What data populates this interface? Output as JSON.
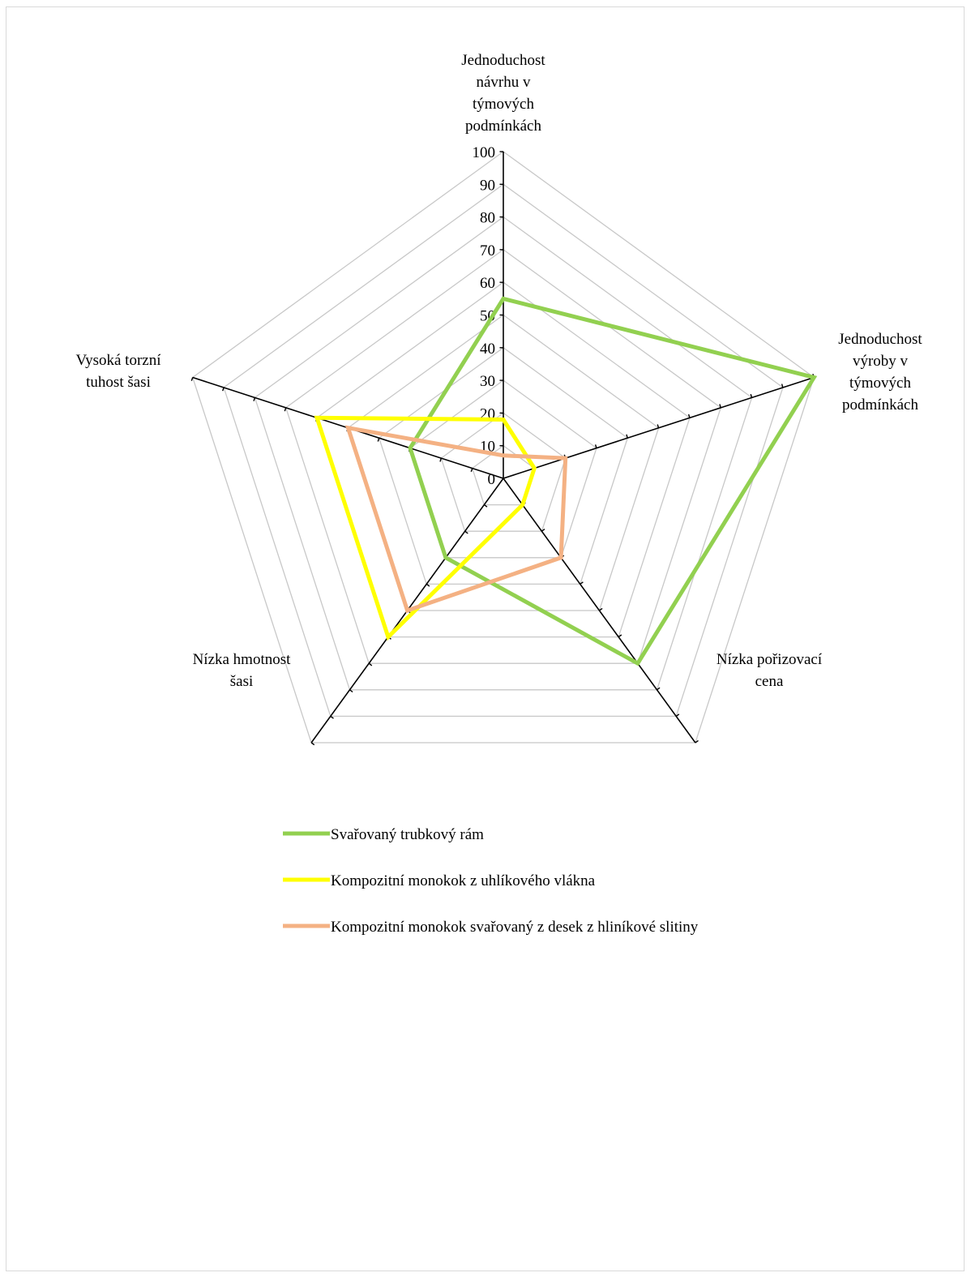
{
  "chart_data": {
    "type": "radar",
    "categories": [
      "Jednoduchost návrhu  v týmových podmínkách",
      "Jednoduchost výroby v týmových podmínkách",
      "Nízka pořizovací cena",
      "Nízka hmotnost šasi",
      "Vysoká torzní tuhost šasi"
    ],
    "category_lines": [
      [
        "Jednoduchost",
        "návrhu  v",
        "týmových",
        "podmínkách"
      ],
      [
        "Jednoduchost",
        "výroby v",
        "týmových",
        "podmínkách"
      ],
      [
        "Nízka pořizovací",
        "cena"
      ],
      [
        "Nízka hmotnost",
        "šasi"
      ],
      [
        "Vysoká torzní",
        "tuhost šasi"
      ]
    ],
    "rlim": [
      0,
      100
    ],
    "ticks": [
      0,
      10,
      20,
      30,
      40,
      50,
      60,
      70,
      80,
      90,
      100
    ],
    "grid": true,
    "legend_position": "bottom",
    "series": [
      {
        "name": "Svařovaný trubkový rám",
        "color": "#92d050",
        "values": [
          55,
          100,
          70,
          30,
          30
        ]
      },
      {
        "name": "Kompozitní monokok z uhlíkového vlákna",
        "color": "#ffff00",
        "values": [
          18,
          10,
          10,
          60,
          60
        ]
      },
      {
        "name": "Kompozitní monokok svařovaný z desek z hliníkové slitiny",
        "color": "#f4b183",
        "values": [
          7,
          20,
          30,
          50,
          50
        ]
      }
    ]
  }
}
